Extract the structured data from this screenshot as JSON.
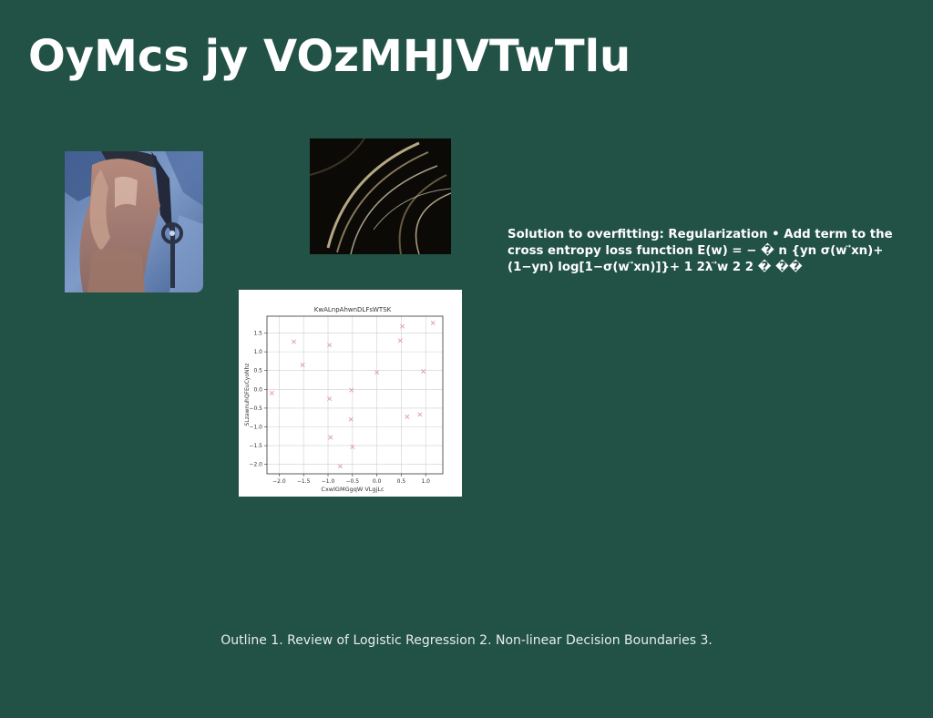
{
  "slide": {
    "title": "OyMcs jy VOzMHJVTwTlu",
    "body_text": "Solution to overfitting: Regularization • Add term to the cross entropy loss function E(w) = − � n {yn σ(w ⃗xn)+(1−yn) log[1−σ(w ⃗xn)]}+ 1 2λ ⃗w 2 2 � ��",
    "footer_text": "Outline 1. Review of Logistic Regression 2. Non-linear Decision Boundaries 3."
  },
  "colors": {
    "background": "#225145",
    "text": "#ffffff",
    "marker": "#e69aa7"
  },
  "chart_data": {
    "type": "scatter",
    "title": "KwALnpAhwnDLFsWTSK",
    "xlabel": "CxwlGMGgqW VLgjLc",
    "ylabel": "SLzawnuhQFEuCyoNhz",
    "xlim": [
      -2.25,
      1.35
    ],
    "ylim": [
      -2.25,
      1.95
    ],
    "x_ticks": [
      -2.0,
      -1.5,
      -1.0,
      -0.5,
      0.0,
      0.5,
      1.0
    ],
    "y_ticks": [
      -2.0,
      -1.5,
      -1.0,
      -0.5,
      0.0,
      0.5,
      1.0,
      1.5
    ],
    "x_tick_labels": [
      "−2.0",
      "−1.5",
      "−1.0",
      "−0.5",
      "0.0",
      "0.5",
      "1.0"
    ],
    "y_tick_labels": [
      "−2.0",
      "−1.5",
      "−1.0",
      "−0.5",
      "0.0",
      "0.5",
      "1.0",
      "1.5"
    ],
    "grid": true,
    "marker": "x",
    "x": [
      -2.15,
      -1.7,
      -1.52,
      -0.97,
      -0.97,
      -0.95,
      -0.75,
      -0.53,
      -0.52,
      -0.5,
      0.0,
      0.48,
      0.52,
      0.62,
      0.88,
      0.95,
      1.15
    ],
    "y": [
      -0.1,
      1.27,
      0.65,
      1.18,
      -0.25,
      -1.28,
      -2.05,
      -0.8,
      -0.02,
      -1.53,
      0.45,
      1.3,
      1.68,
      -0.73,
      -0.67,
      0.48,
      1.77
    ]
  }
}
